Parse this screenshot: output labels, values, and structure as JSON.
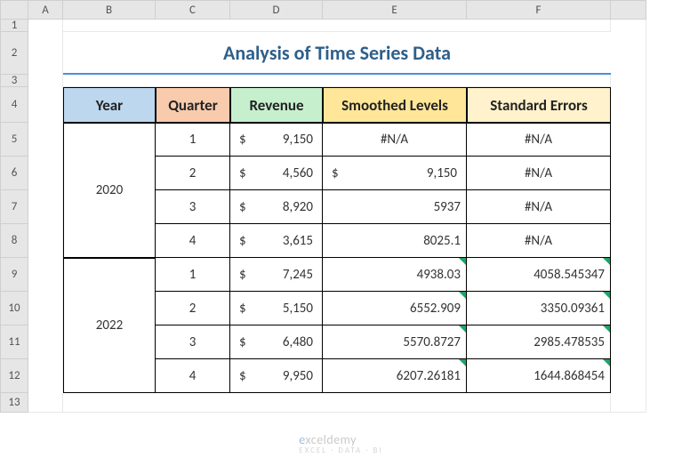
{
  "columns": [
    "A",
    "B",
    "C",
    "D",
    "E",
    "F"
  ],
  "rows": [
    "1",
    "2",
    "3",
    "4",
    "5",
    "6",
    "7",
    "8",
    "9",
    "10",
    "11",
    "12",
    "13"
  ],
  "title": "Analysis of Time Series Data",
  "title_color": "#2e5f8a",
  "title_underline_color": "#4a8fd9",
  "title_fontsize": 22,
  "headers": {
    "year": {
      "label": "Year",
      "bg": "#bdd7ee"
    },
    "quarter": {
      "label": "Quarter",
      "bg": "#f8cbad"
    },
    "revenue": {
      "label": "Revenue",
      "bg": "#c6efce"
    },
    "smooth": {
      "label": "Smoothed Levels",
      "bg": "#ffe699"
    },
    "stderr": {
      "label": "Standard Errors",
      "bg": "#fff2cc"
    }
  },
  "header_fontsize": 17,
  "cell_fontsize": 15,
  "na_text": "#N/A",
  "currency_symbol": "$",
  "years": [
    {
      "year": "2020",
      "quarters": [
        {
          "q": "1",
          "revenue": "9,150",
          "smooth_currency": false,
          "smooth": "#N/A",
          "smooth_is_na": true,
          "stderr": "#N/A",
          "stderr_is_na": true
        },
        {
          "q": "2",
          "revenue": "4,560",
          "smooth_currency": true,
          "smooth": "9,150",
          "smooth_is_na": false,
          "stderr": "#N/A",
          "stderr_is_na": true
        },
        {
          "q": "3",
          "revenue": "8,920",
          "smooth_currency": false,
          "smooth": "5937",
          "smooth_is_na": false,
          "stderr": "#N/A",
          "stderr_is_na": true
        },
        {
          "q": "4",
          "revenue": "3,615",
          "smooth_currency": false,
          "smooth": "8025.1",
          "smooth_is_na": false,
          "stderr": "#N/A",
          "stderr_is_na": true
        }
      ]
    },
    {
      "year": "2022",
      "quarters": [
        {
          "q": "1",
          "revenue": "7,245",
          "smooth_currency": false,
          "smooth": "4938.03",
          "smooth_is_na": false,
          "stderr": "4058.545347",
          "stderr_is_na": false
        },
        {
          "q": "2",
          "revenue": "5,150",
          "smooth_currency": false,
          "smooth": "6552.909",
          "smooth_is_na": false,
          "stderr": "3350.09361",
          "stderr_is_na": false
        },
        {
          "q": "3",
          "revenue": "6,480",
          "smooth_currency": false,
          "smooth": "5570.8727",
          "smooth_is_na": false,
          "stderr": "2985.478535",
          "stderr_is_na": false
        },
        {
          "q": "4",
          "revenue": "9,950",
          "smooth_currency": false,
          "smooth": "6207.26181",
          "smooth_is_na": false,
          "stderr": "1644.868454",
          "stderr_is_na": false
        }
      ]
    }
  ],
  "watermark": {
    "brand_prefix": "e",
    "brand_main": "xceldemy",
    "tagline": "EXCEL · DATA · BI"
  },
  "colors": {
    "header_bg": "#e6e6e6",
    "header_border": "#cfcfcf",
    "gridline": "#e8e8e8",
    "table_border": "#000000",
    "error_triangle": "#21a366"
  }
}
